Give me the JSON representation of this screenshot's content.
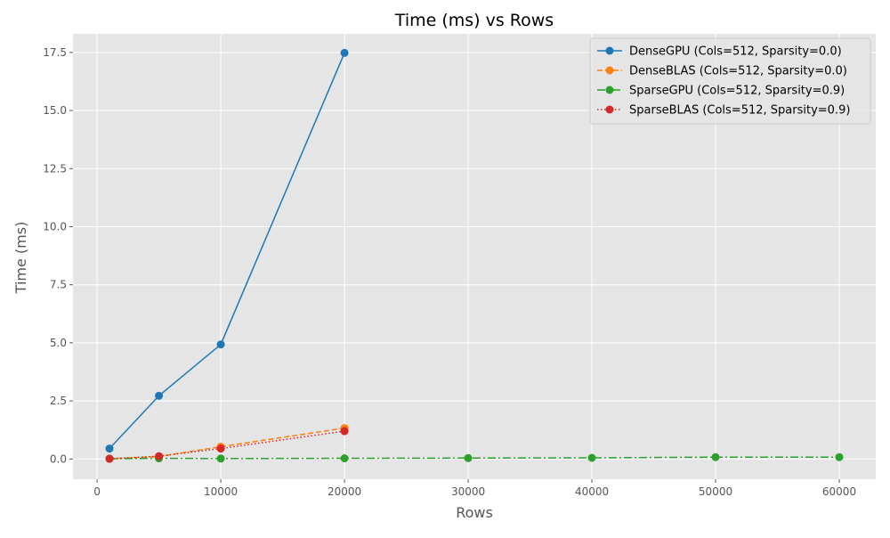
{
  "chart_data": {
    "type": "line",
    "title": "Time (ms) vs Rows",
    "xlabel": "Rows",
    "ylabel": "Time (ms)",
    "xlim": [
      -1950,
      62950
    ],
    "ylim": [
      -0.87,
      18.3
    ],
    "x_ticks": [
      0,
      10000,
      20000,
      30000,
      40000,
      50000,
      60000
    ],
    "x_tick_labels": [
      "0",
      "10000",
      "20000",
      "30000",
      "40000",
      "50000",
      "60000"
    ],
    "y_ticks": [
      0.0,
      2.5,
      5.0,
      7.5,
      10.0,
      12.5,
      15.0,
      17.5
    ],
    "y_tick_labels": [
      "0.0",
      "2.5",
      "5.0",
      "7.5",
      "10.0",
      "12.5",
      "15.0",
      "17.5"
    ],
    "grid": true,
    "legend_position": "top-right",
    "background": "#e5e5e5",
    "series": [
      {
        "name": "DenseGPU (Cols=512, Sparsity=0.0)",
        "color": "#1f77b4",
        "linestyle": "solid",
        "x": [
          1000,
          5000,
          10000,
          20000
        ],
        "y": [
          0.45,
          2.72,
          4.93,
          17.48
        ]
      },
      {
        "name": "DenseBLAS (Cols=512, Sparsity=0.0)",
        "color": "#ff7f0e",
        "linestyle": "dashed",
        "x": [
          1000,
          5000,
          10000,
          20000
        ],
        "y": [
          0.01,
          0.11,
          0.53,
          1.33
        ]
      },
      {
        "name": "SparseGPU (Cols=512, Sparsity=0.9)",
        "color": "#2ca02c",
        "linestyle": "dashdot",
        "x": [
          1000,
          5000,
          10000,
          20000,
          30000,
          40000,
          50000,
          60000
        ],
        "y": [
          0.01,
          0.03,
          0.02,
          0.03,
          0.04,
          0.05,
          0.08,
          0.08
        ]
      },
      {
        "name": "SparseBLAS (Cols=512, Sparsity=0.9)",
        "color": "#d62728",
        "linestyle": "dotted",
        "x": [
          1000,
          5000,
          10000,
          20000
        ],
        "y": [
          0.01,
          0.12,
          0.45,
          1.2
        ]
      }
    ]
  }
}
